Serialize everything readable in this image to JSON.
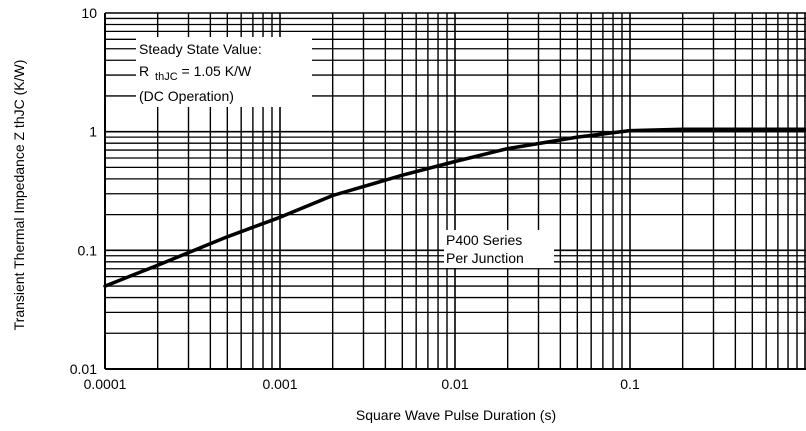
{
  "chart_data": {
    "type": "line",
    "title": "",
    "xlabel": "Square Wave Pulse Duration (s)",
    "ylabel": "Transient Thermal Impedance Z thJC (K/W)",
    "x_scale": "log",
    "y_scale": "log",
    "xlim": [
      0.0001,
      1
    ],
    "ylim": [
      0.01,
      10
    ],
    "x_ticks": [
      "0.0001",
      "0.001",
      "0.01",
      "0.1"
    ],
    "y_ticks": [
      "10",
      "1",
      "0.1",
      "0.01"
    ],
    "grid": true,
    "series": [
      {
        "x": [
          0.0001,
          0.0002,
          0.0005,
          0.001,
          0.002,
          0.005,
          0.01,
          0.02,
          0.05,
          0.1,
          0.2,
          0.5,
          1
        ],
        "y": [
          0.05,
          0.075,
          0.13,
          0.19,
          0.29,
          0.43,
          0.56,
          0.72,
          0.9,
          1.02,
          1.05,
          1.05,
          1.05
        ]
      }
    ],
    "annotations": {
      "steady_line1": "Steady State Value:",
      "steady_r": "R",
      "steady_sub": "thJC",
      "steady_val": " = 1.05 K/W",
      "steady_line3": "(DC Operation)",
      "series_line1": "P400 Series",
      "series_line2": "Per Junction"
    }
  }
}
